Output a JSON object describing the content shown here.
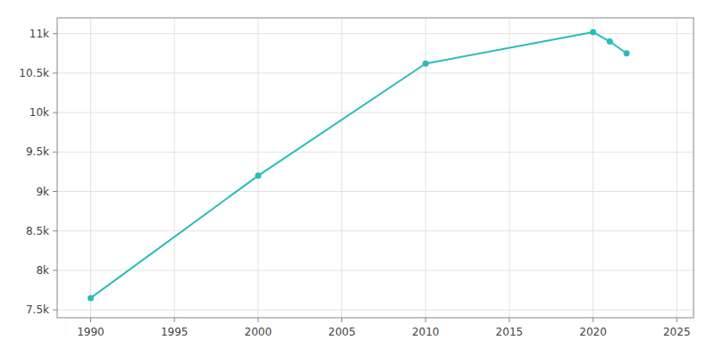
{
  "chart_data": {
    "type": "line",
    "x": [
      1990,
      2000,
      2010,
      2020,
      2021,
      2022
    ],
    "values": [
      7650,
      9200,
      10620,
      11020,
      10900,
      10750
    ],
    "color": "#2bbcbc",
    "marker": "circle",
    "xlim": [
      1988,
      2026
    ],
    "ylim": [
      7400,
      11200
    ],
    "xticks": [
      1990,
      1995,
      2000,
      2005,
      2010,
      2015,
      2020,
      2025
    ],
    "yticks": [
      {
        "value": 7500,
        "label": "7.5k"
      },
      {
        "value": 8000,
        "label": "8k"
      },
      {
        "value": 8500,
        "label": "8.5k"
      },
      {
        "value": 9000,
        "label": "9k"
      },
      {
        "value": 9500,
        "label": "9.5k"
      },
      {
        "value": 10000,
        "label": "10k"
      },
      {
        "value": 10500,
        "label": "10.5k"
      },
      {
        "value": 11000,
        "label": "11k"
      }
    ],
    "grid": true
  }
}
